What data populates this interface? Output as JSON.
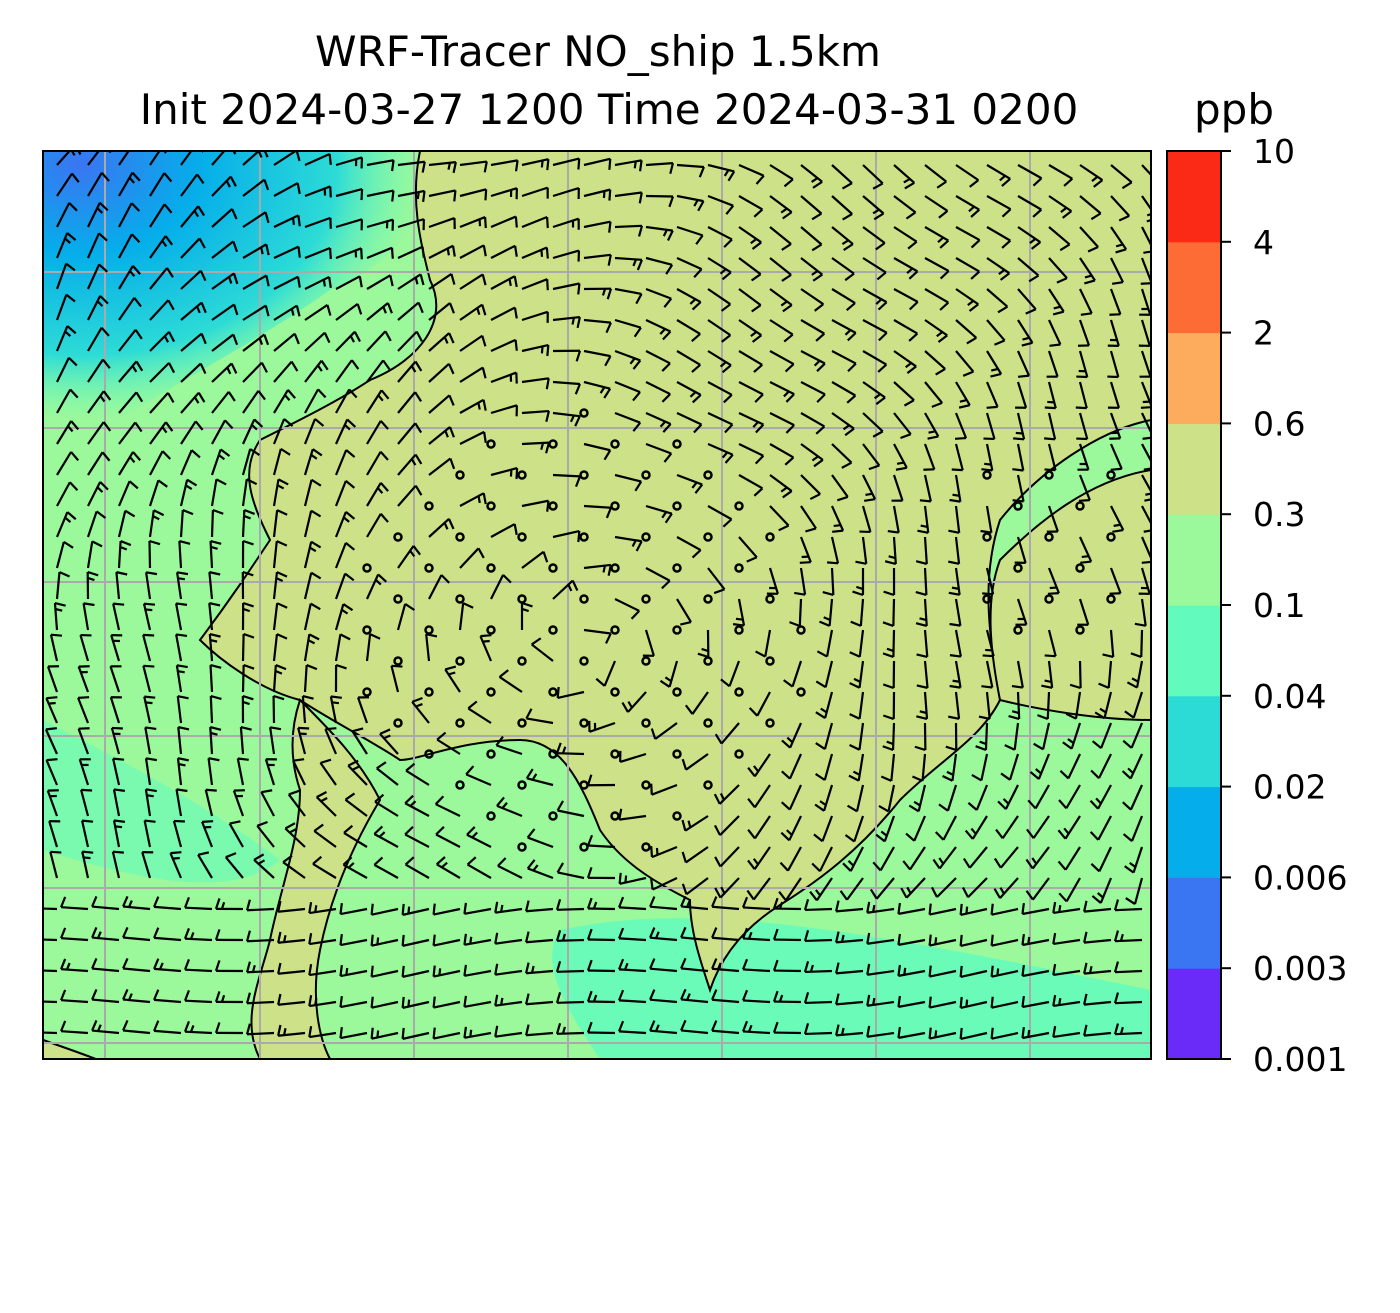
{
  "title_line1": "WRF-Tracer NO_ship 1.5km",
  "title_line2": "Init 2024-03-27 1200 Time 2024-03-31 0200",
  "units": "ppb",
  "colorbar": {
    "levels": [
      "0.001",
      "0.003",
      "0.006",
      "0.02",
      "0.04",
      "0.1",
      "0.3",
      "0.6",
      "2",
      "4",
      "10"
    ],
    "colors": [
      "#6a2af7",
      "#3a75f2",
      "#05aeea",
      "#2ddbd6",
      "#62fbbd",
      "#9bf89b",
      "#cde288",
      "#fdab5c",
      "#fe6c36",
      "#fb2a17"
    ]
  },
  "map": {
    "ocean_color": "#9bf89b",
    "land_color": "#cde288",
    "low_color": "#05aeea",
    "grid_color": "#aaaaaa",
    "coast_color": "#000000",
    "barb_color": "#000000"
  }
}
